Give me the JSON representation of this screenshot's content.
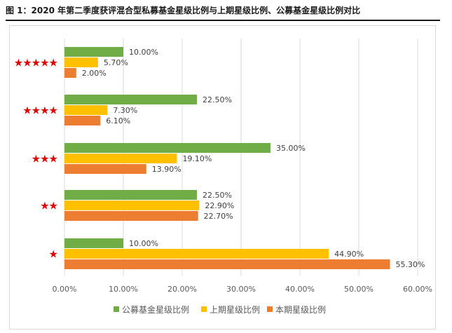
{
  "figure": {
    "title": "图 1：2020 年第二季度获评混合型私募基金星级比例与上期星级比例、公募基金星级比例对比"
  },
  "colors": {
    "public": "#70ad47",
    "previous": "#ffc000",
    "current": "#ed7d31",
    "star": "#e00000",
    "axis_text": "#595959",
    "gridline": "#d9d9d9"
  },
  "chart_data": {
    "type": "bar",
    "orientation": "horizontal",
    "categories": [
      "★★★★★",
      "★★★★",
      "★★★",
      "★★",
      "★"
    ],
    "category_star_counts": [
      5,
      4,
      3,
      2,
      1
    ],
    "series": [
      {
        "name": "公募基金星级比例",
        "color": "#70ad47",
        "values": [
          10.0,
          22.5,
          35.0,
          22.5,
          10.0
        ],
        "labels": [
          "10.00%",
          "22.50%",
          "35.00%",
          "22.50%",
          "10.00%"
        ]
      },
      {
        "name": "上期星级比例",
        "color": "#ffc000",
        "values": [
          5.7,
          7.3,
          19.1,
          22.9,
          44.9
        ],
        "labels": [
          "5.70%",
          "7.30%",
          "19.10%",
          "22.90%",
          "44.90%"
        ]
      },
      {
        "name": "本期星级比例",
        "color": "#ed7d31",
        "values": [
          2.0,
          6.1,
          13.9,
          22.7,
          55.3
        ],
        "labels": [
          "2.00%",
          "6.10%",
          "13.90%",
          "22.70%",
          "55.30%"
        ]
      }
    ],
    "xlim": [
      0,
      60
    ],
    "xticks": [
      0,
      10,
      20,
      30,
      40,
      50,
      60
    ],
    "xtick_labels": [
      "0.00%",
      "10.00%",
      "20.00%",
      "30.00%",
      "40.00%",
      "50.00%",
      "60.00%"
    ],
    "grid": true,
    "legend_position": "bottom"
  }
}
